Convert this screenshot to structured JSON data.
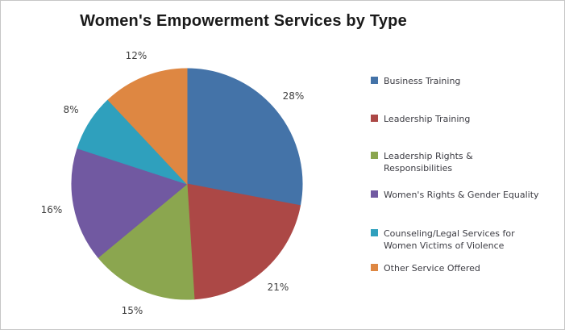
{
  "chart_data": {
    "type": "pie",
    "title": "Women's Empowerment Services by Type",
    "categories": [
      "Business Training",
      "Leadership Training",
      "Leadership Rights & Responsibilities",
      "Women's Rights & Gender Equality",
      "Counseling/Legal Services for Women Victims of Violence",
      "Other Service Offered"
    ],
    "values": [
      28,
      21,
      15,
      16,
      8,
      12
    ],
    "value_labels": [
      "28%",
      "21%",
      "15%",
      "16%",
      "8%",
      "12%"
    ],
    "colors": [
      "#4473A8",
      "#AC4846",
      "#8BA64F",
      "#7159A1",
      "#2FA0BD",
      "#DE8742"
    ],
    "start_angle_deg": 0,
    "direction": "clockwise",
    "legend_position": "right",
    "grid": "off",
    "title_color": "#1a1a1a",
    "label_color": "#3f3f3f",
    "legend_text_color": "#3c3c43",
    "background_color": "#ffffff",
    "border_color": "#c6c6c6"
  }
}
